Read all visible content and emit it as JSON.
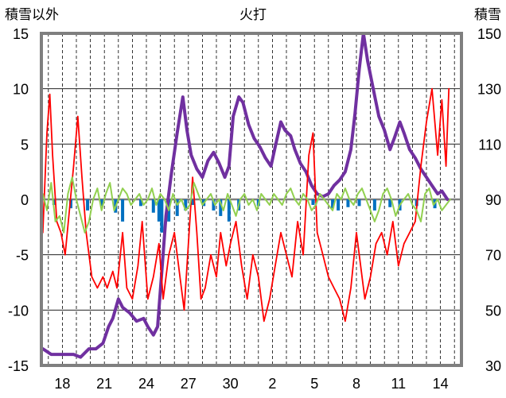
{
  "chart_data": {
    "type": "line",
    "title": "火打",
    "left_axis_label": "積雪以外",
    "right_axis_label": "積雪",
    "left_ylim": [
      -15,
      15
    ],
    "right_ylim": [
      30,
      150
    ],
    "left_ticks": [
      "15",
      "10",
      "5",
      "0",
      "-5",
      "-10",
      "-15"
    ],
    "right_ticks": [
      "150",
      "130",
      "110",
      "90",
      "70",
      "50",
      "30"
    ],
    "x_tick_labels": [
      "18",
      "21",
      "24",
      "27",
      "30",
      "2",
      "5",
      "8",
      "11",
      "14"
    ],
    "x_tick_index": [
      0,
      3,
      6,
      9,
      12,
      15,
      18,
      21,
      24,
      27
    ],
    "x_range_days": [
      -1.5,
      28.5
    ],
    "grid": true,
    "colors": {
      "frame": "#7f7f7f",
      "grid": "#000000",
      "zero_line": "#808080",
      "temperature": "#ff0000",
      "wind": "#92d050",
      "precipitation": "#0070c0",
      "snow_depth": "#7030a0"
    },
    "series": [
      {
        "axis": "right",
        "values": [
          [
            -1.4,
            36
          ],
          [
            -0.8,
            34
          ],
          [
            0,
            34
          ],
          [
            0.8,
            34
          ],
          [
            1.3,
            33
          ],
          [
            1.9,
            36
          ],
          [
            2.4,
            36
          ],
          [
            2.9,
            38
          ],
          [
            3.3,
            44
          ],
          [
            3.6,
            47
          ],
          [
            4,
            54
          ],
          [
            4.3,
            51
          ],
          [
            4.8,
            49
          ],
          [
            5.3,
            46
          ],
          [
            5.8,
            47
          ],
          [
            6.1,
            44
          ],
          [
            6.5,
            41
          ],
          [
            6.8,
            44
          ],
          [
            7.1,
            64
          ],
          [
            7.4,
            84
          ],
          [
            7.8,
            100
          ],
          [
            8.2,
            114
          ],
          [
            8.6,
            127
          ],
          [
            8.9,
            115
          ],
          [
            9.2,
            106
          ],
          [
            9.6,
            101
          ],
          [
            10,
            98
          ],
          [
            10.4,
            104
          ],
          [
            10.8,
            107
          ],
          [
            11.2,
            103
          ],
          [
            11.6,
            98
          ],
          [
            11.9,
            102
          ],
          [
            12.2,
            120
          ],
          [
            12.6,
            127
          ],
          [
            12.9,
            125
          ],
          [
            13.3,
            117
          ],
          [
            13.7,
            112
          ],
          [
            14.1,
            109
          ],
          [
            14.5,
            105
          ],
          [
            14.9,
            102
          ],
          [
            15.2,
            109
          ],
          [
            15.6,
            118
          ],
          [
            15.9,
            115
          ],
          [
            16.3,
            113
          ],
          [
            16.6,
            108
          ],
          [
            17,
            103
          ],
          [
            17.4,
            100
          ],
          [
            17.8,
            95
          ],
          [
            18.2,
            92
          ],
          [
            18.6,
            91
          ],
          [
            19,
            92
          ],
          [
            19.4,
            95
          ],
          [
            19.8,
            97
          ],
          [
            20.2,
            100
          ],
          [
            20.6,
            108
          ],
          [
            20.9,
            121
          ],
          [
            21.2,
            137
          ],
          [
            21.5,
            150
          ],
          [
            21.8,
            140
          ],
          [
            22.2,
            130
          ],
          [
            22.6,
            120
          ],
          [
            23,
            115
          ],
          [
            23.4,
            108
          ],
          [
            23.7,
            112
          ],
          [
            24.1,
            118
          ],
          [
            24.4,
            114
          ],
          [
            24.8,
            108
          ],
          [
            25.2,
            105
          ],
          [
            25.6,
            101
          ],
          [
            26,
            98
          ],
          [
            26.4,
            95
          ],
          [
            26.8,
            92
          ],
          [
            27.1,
            93
          ],
          [
            27.5,
            90
          ]
        ]
      },
      {
        "axis": "left",
        "values": [
          [
            -1.4,
            -3
          ],
          [
            -1.1,
            6
          ],
          [
            -0.9,
            9.5
          ],
          [
            -0.7,
            4
          ],
          [
            -0.4,
            -2
          ],
          [
            -0.1,
            -3
          ],
          [
            0.2,
            -5
          ],
          [
            0.5,
            -1
          ],
          [
            0.8,
            3
          ],
          [
            1.1,
            7.5
          ],
          [
            1.4,
            2
          ],
          [
            1.7,
            -3
          ],
          [
            2.1,
            -7
          ],
          [
            2.5,
            -8
          ],
          [
            2.9,
            -7
          ],
          [
            3.2,
            -8
          ],
          [
            3.6,
            -6.5
          ],
          [
            3.9,
            -8
          ],
          [
            4.3,
            -3
          ],
          [
            4.6,
            -8
          ],
          [
            5,
            -9
          ],
          [
            5.4,
            -6
          ],
          [
            5.7,
            -2
          ],
          [
            6.1,
            -9
          ],
          [
            6.5,
            -7
          ],
          [
            6.9,
            -4
          ],
          [
            7.2,
            -9
          ],
          [
            7.6,
            -5
          ],
          [
            8,
            -3
          ],
          [
            8.4,
            -7
          ],
          [
            8.7,
            -10
          ],
          [
            9,
            -4
          ],
          [
            9.3,
            2
          ],
          [
            9.6,
            -3
          ],
          [
            9.9,
            -9
          ],
          [
            10.2,
            -8
          ],
          [
            10.6,
            -5
          ],
          [
            11,
            -7
          ],
          [
            11.3,
            -3
          ],
          [
            11.7,
            -6
          ],
          [
            12,
            -4
          ],
          [
            12.4,
            -2
          ],
          [
            12.8,
            -6
          ],
          [
            13.2,
            -9
          ],
          [
            13.6,
            -5
          ],
          [
            14,
            -7
          ],
          [
            14.4,
            -11
          ],
          [
            14.8,
            -9
          ],
          [
            15.2,
            -6
          ],
          [
            15.6,
            -3
          ],
          [
            16,
            -5
          ],
          [
            16.4,
            -7
          ],
          [
            16.8,
            -2
          ],
          [
            17.2,
            -5
          ],
          [
            17.6,
            4
          ],
          [
            17.9,
            6
          ],
          [
            18.2,
            -3
          ],
          [
            18.6,
            -5
          ],
          [
            19,
            -7
          ],
          [
            19.4,
            -8
          ],
          [
            19.8,
            -9
          ],
          [
            20.2,
            -11
          ],
          [
            20.6,
            -8
          ],
          [
            21,
            -3
          ],
          [
            21.3,
            -6
          ],
          [
            21.6,
            -9
          ],
          [
            22,
            -7
          ],
          [
            22.4,
            -4
          ],
          [
            22.8,
            -3
          ],
          [
            23.2,
            -5
          ],
          [
            23.6,
            -2
          ],
          [
            24,
            -6
          ],
          [
            24.4,
            -4
          ],
          [
            24.8,
            -3
          ],
          [
            25.2,
            -2
          ],
          [
            25.6,
            3
          ],
          [
            26,
            7
          ],
          [
            26.4,
            10
          ],
          [
            26.8,
            4
          ],
          [
            27.1,
            9
          ],
          [
            27.4,
            3
          ],
          [
            27.6,
            10
          ]
        ]
      },
      {
        "axis": "left",
        "values": [
          [
            -1.4,
            0.5
          ],
          [
            -1.1,
            -1
          ],
          [
            -0.8,
            1.5
          ],
          [
            -0.5,
            -2
          ],
          [
            -0.2,
            -1.5
          ],
          [
            0.1,
            -3
          ],
          [
            0.4,
            0.5
          ],
          [
            0.7,
            2
          ],
          [
            1,
            0
          ],
          [
            1.3,
            -1.5
          ],
          [
            1.6,
            -3
          ],
          [
            1.9,
            -2
          ],
          [
            2.2,
            0
          ],
          [
            2.5,
            1
          ],
          [
            2.8,
            -1
          ],
          [
            3.1,
            0.5
          ],
          [
            3.4,
            1.5
          ],
          [
            3.7,
            -1
          ],
          [
            4,
            0
          ],
          [
            4.3,
            1
          ],
          [
            4.6,
            0.5
          ],
          [
            4.9,
            -0.5
          ],
          [
            5.2,
            0
          ],
          [
            5.5,
            0.5
          ],
          [
            5.8,
            -0.5
          ],
          [
            6.1,
            0
          ],
          [
            6.4,
            1
          ],
          [
            6.7,
            -0.5
          ],
          [
            7,
            0.5
          ],
          [
            7.3,
            0
          ],
          [
            7.6,
            -1
          ],
          [
            7.9,
            0.5
          ],
          [
            8.2,
            -0.5
          ],
          [
            8.5,
            0
          ],
          [
            8.8,
            -1
          ],
          [
            9.1,
            -0.5
          ],
          [
            9.4,
            1.5
          ],
          [
            9.7,
            0.5
          ],
          [
            10,
            -0.5
          ],
          [
            10.3,
            0
          ],
          [
            10.6,
            0.5
          ],
          [
            10.9,
            -0.5
          ],
          [
            11.2,
            0
          ],
          [
            11.5,
            -1
          ],
          [
            11.8,
            0.5
          ],
          [
            12.1,
            -0.5
          ],
          [
            12.4,
            -1.5
          ],
          [
            12.7,
            0
          ],
          [
            13,
            0.5
          ],
          [
            13.3,
            -0.5
          ],
          [
            13.6,
            0
          ],
          [
            13.9,
            -1
          ],
          [
            14.2,
            0.5
          ],
          [
            14.5,
            0
          ],
          [
            14.8,
            -0.5
          ],
          [
            15.1,
            0.5
          ],
          [
            15.4,
            0
          ],
          [
            15.7,
            -0.5
          ],
          [
            16,
            0.5
          ],
          [
            16.3,
            1
          ],
          [
            16.6,
            0
          ],
          [
            16.9,
            -0.5
          ],
          [
            17.2,
            0.5
          ],
          [
            17.5,
            0
          ],
          [
            17.8,
            -1
          ],
          [
            18.1,
            -0.5
          ],
          [
            18.4,
            0.5
          ],
          [
            18.7,
            0
          ],
          [
            19,
            -0.5
          ],
          [
            19.3,
            -1
          ],
          [
            19.6,
            0.5
          ],
          [
            19.9,
            0
          ],
          [
            20.2,
            1
          ],
          [
            20.5,
            0
          ],
          [
            20.8,
            -0.5
          ],
          [
            21.1,
            0.5
          ],
          [
            21.4,
            1
          ],
          [
            21.7,
            0
          ],
          [
            22,
            -1
          ],
          [
            22.3,
            -2
          ],
          [
            22.6,
            -1
          ],
          [
            22.9,
            0.5
          ],
          [
            23.2,
            1
          ],
          [
            23.5,
            0
          ],
          [
            23.8,
            -1.5
          ],
          [
            24.1,
            -0.5
          ],
          [
            24.4,
            0
          ],
          [
            24.7,
            0.5
          ],
          [
            25,
            -0.5
          ],
          [
            25.3,
            -1
          ],
          [
            25.6,
            -2
          ],
          [
            25.9,
            0.5
          ],
          [
            26.2,
            1
          ],
          [
            26.5,
            -0.5
          ],
          [
            26.8,
            0
          ],
          [
            27.1,
            -1
          ],
          [
            27.4,
            -0.5
          ],
          [
            27.7,
            0
          ]
        ]
      },
      {
        "axis": "left",
        "type": "bar",
        "values": [
          [
            -0.6,
            -0.5
          ],
          [
            0.6,
            -0.8
          ],
          [
            1.8,
            -1
          ],
          [
            2.8,
            -0.6
          ],
          [
            3.8,
            -1.2
          ],
          [
            4.3,
            -2
          ],
          [
            5.6,
            -0.6
          ],
          [
            6.5,
            -1.2
          ],
          [
            6.9,
            -2
          ],
          [
            7.1,
            -3
          ],
          [
            7.6,
            -2
          ],
          [
            8.2,
            -1.5
          ],
          [
            8.8,
            -1
          ],
          [
            9.3,
            -0.5
          ],
          [
            10.1,
            -0.6
          ],
          [
            10.8,
            -1
          ],
          [
            11.3,
            -1.5
          ],
          [
            11.9,
            -2
          ],
          [
            12.6,
            -1
          ],
          [
            14,
            -0.6
          ],
          [
            17.9,
            -0.5
          ],
          [
            19.3,
            -0.8
          ],
          [
            19.7,
            -1
          ],
          [
            20.4,
            -0.7
          ],
          [
            21.2,
            -0.6
          ],
          [
            22.3,
            -1
          ],
          [
            23.4,
            -0.7
          ],
          [
            24.1,
            -1
          ],
          [
            25.3,
            -0.6
          ],
          [
            26.6,
            -0.8
          ]
        ]
      }
    ]
  }
}
